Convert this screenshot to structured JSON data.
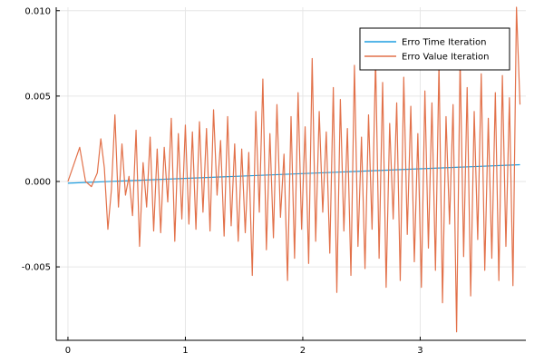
{
  "chart_data": {
    "type": "line",
    "title": "",
    "xlabel": "",
    "ylabel": "",
    "xlim": [
      -0.1,
      3.9
    ],
    "ylim": [
      -0.0093,
      0.0102
    ],
    "grid": true,
    "legend_position": "top-right",
    "x_ticks": [
      0,
      1,
      2,
      3
    ],
    "x_tick_labels": [
      "0",
      "1",
      "2",
      "3"
    ],
    "y_ticks": [
      -0.005,
      0,
      0.005,
      0.01
    ],
    "y_tick_labels": [
      "-0.005",
      "0.000",
      "0.005",
      "0.010"
    ],
    "series": [
      {
        "name": "Erro Time Iteration",
        "color": "#1f9ee0",
        "x": [
          0,
          3.85
        ],
        "y": [
          -0.0001,
          0.00098
        ]
      },
      {
        "name": "Erro Value Iteration",
        "color": "#e2714a",
        "x": [
          0,
          0.05,
          0.1,
          0.15,
          0.2,
          0.25,
          0.28,
          0.31,
          0.34,
          0.37,
          0.4,
          0.43,
          0.46,
          0.49,
          0.52,
          0.55,
          0.58,
          0.61,
          0.64,
          0.67,
          0.7,
          0.73,
          0.76,
          0.79,
          0.82,
          0.85,
          0.88,
          0.91,
          0.94,
          0.97,
          1.0,
          1.03,
          1.06,
          1.09,
          1.12,
          1.15,
          1.18,
          1.21,
          1.24,
          1.27,
          1.3,
          1.33,
          1.36,
          1.39,
          1.42,
          1.45,
          1.48,
          1.51,
          1.54,
          1.57,
          1.6,
          1.63,
          1.66,
          1.69,
          1.72,
          1.75,
          1.78,
          1.81,
          1.84,
          1.87,
          1.9,
          1.93,
          1.96,
          1.99,
          2.02,
          2.05,
          2.08,
          2.11,
          2.14,
          2.17,
          2.2,
          2.23,
          2.26,
          2.29,
          2.32,
          2.35,
          2.38,
          2.41,
          2.44,
          2.47,
          2.5,
          2.53,
          2.56,
          2.59,
          2.62,
          2.65,
          2.68,
          2.71,
          2.74,
          2.77,
          2.8,
          2.83,
          2.86,
          2.89,
          2.92,
          2.95,
          2.98,
          3.01,
          3.04,
          3.07,
          3.1,
          3.13,
          3.16,
          3.19,
          3.22,
          3.25,
          3.28,
          3.31,
          3.34,
          3.37,
          3.4,
          3.43,
          3.46,
          3.49,
          3.52,
          3.55,
          3.58,
          3.61,
          3.64,
          3.67,
          3.7,
          3.73,
          3.76,
          3.79,
          3.82,
          3.85
        ],
        "y": [
          0.0,
          0.001,
          0.002,
          0.0,
          -0.0003,
          0.0005,
          0.0025,
          0.0008,
          -0.0028,
          -0.0005,
          0.0039,
          -0.0015,
          0.0022,
          -0.0008,
          0.0003,
          -0.002,
          0.003,
          -0.0038,
          0.0011,
          -0.0015,
          0.0026,
          -0.0029,
          0.0019,
          -0.003,
          0.002,
          -0.0012,
          0.0037,
          -0.0035,
          0.0028,
          -0.0022,
          0.0033,
          -0.0025,
          0.0029,
          -0.0028,
          0.0035,
          -0.0018,
          0.0031,
          -0.0029,
          0.0042,
          -0.0008,
          0.0024,
          -0.0032,
          0.0038,
          -0.0026,
          0.0022,
          -0.0035,
          0.0019,
          -0.003,
          0.0017,
          -0.0055,
          0.0041,
          -0.0018,
          0.006,
          -0.004,
          0.0028,
          -0.0033,
          0.0045,
          -0.0021,
          0.0016,
          -0.0058,
          0.0038,
          -0.0045,
          0.0052,
          -0.0028,
          0.0032,
          -0.0048,
          0.0072,
          -0.0035,
          0.0041,
          -0.0018,
          0.0029,
          -0.0042,
          0.0055,
          -0.0065,
          0.0048,
          -0.0029,
          0.0031,
          -0.0055,
          0.0068,
          -0.0038,
          0.0026,
          -0.0051,
          0.0039,
          -0.0028,
          0.0072,
          -0.0045,
          0.0058,
          -0.0062,
          0.0034,
          -0.0022,
          0.0046,
          -0.0058,
          0.0061,
          -0.0031,
          0.0044,
          -0.0047,
          0.0028,
          -0.0062,
          0.0053,
          -0.0039,
          0.0046,
          -0.0052,
          0.0069,
          -0.0071,
          0.0038,
          -0.0025,
          0.0045,
          -0.0088,
          0.0072,
          -0.0044,
          0.0055,
          -0.0067,
          0.0041,
          -0.0034,
          0.0063,
          -0.0052,
          0.0037,
          -0.0045,
          0.0052,
          -0.0058,
          0.0062,
          -0.0038,
          0.0049,
          -0.0061,
          0.0102,
          0.0045
        ]
      }
    ]
  }
}
